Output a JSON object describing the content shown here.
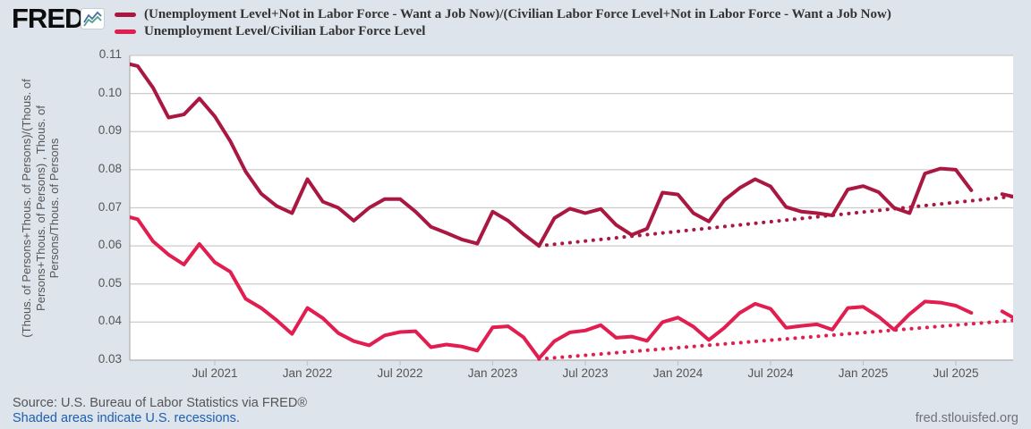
{
  "header": {
    "logo_text": "FRED",
    "logo_reg": "®",
    "legend": [
      {
        "label": "(Unemployment Level+Not in Labor Force - Want a Job Now)/(Civilian Labor Force Level+Not in Labor Force - Want a Job Now)",
        "color": "#aa1740"
      },
      {
        "label": "Unemployment Level/Civilian Labor Force Level",
        "color": "#e21d50"
      }
    ]
  },
  "palette": {
    "page_background": "#dee4ec",
    "plot_background": "#ffffff",
    "gridline": "#cccccc",
    "axis_line": "#b3b3b3",
    "tick_mark": "#bdc7d4",
    "axis_text": "#555555",
    "series_broad": "#aa1740",
    "series_u3": "#e21d50",
    "link_blue": "#1f5fad"
  },
  "chart_data": {
    "type": "line",
    "title": "",
    "xlabel": "",
    "ylabel": "(Thous. of Persons+Thous. of Persons)/(Thous. of Persons+Thous. of Persons) , Thous. of Persons/Thous. of Persons",
    "ylabel_lines": [
      "(Thous. of Persons+Thous. of Persons)/(Thous. of",
      "Persons+Thous. of Persons) , Thous. of",
      "Persons/Thous. of Persons"
    ],
    "frequency": "Monthly",
    "x_start": "Jan 2021",
    "x_end": "Nov 2025",
    "ylim": [
      0.03,
      0.11
    ],
    "grid": "horizontal",
    "legend_position": "top",
    "yticks": [
      {
        "label": "0.11",
        "value": 0.11
      },
      {
        "label": "0.10",
        "value": 0.1
      },
      {
        "label": "0.09",
        "value": 0.09
      },
      {
        "label": "0.08",
        "value": 0.08
      },
      {
        "label": "0.07",
        "value": 0.07
      },
      {
        "label": "0.06",
        "value": 0.06
      },
      {
        "label": "0.05",
        "value": 0.05
      },
      {
        "label": "0.04",
        "value": 0.04
      },
      {
        "label": "0.03",
        "value": 0.03
      }
    ],
    "xticks": [
      {
        "label": "Jul 2021",
        "index": 6
      },
      {
        "label": "Jan 2022",
        "index": 12
      },
      {
        "label": "Jul 2022",
        "index": 18
      },
      {
        "label": "Jan 2023",
        "index": 24
      },
      {
        "label": "Jul 2023",
        "index": 30
      },
      {
        "label": "Jan 2024",
        "index": 36
      },
      {
        "label": "Jul 2024",
        "index": 42
      },
      {
        "label": "Jan 2025",
        "index": 48
      },
      {
        "label": "Jul 2025",
        "index": 54
      }
    ],
    "series": [
      {
        "id": "ratio-broad",
        "name": "(Unemployment Level+Not in Labor Force - Want a Job Now)/(Civilian Labor Force Level+Not in Labor Force - Want a Job Now)",
        "style": "solid",
        "color": "#aa1740",
        "values": [
          0.1082,
          0.1072,
          0.1015,
          0.0937,
          0.0945,
          0.0987,
          0.094,
          0.0875,
          0.0795,
          0.0737,
          0.0705,
          0.0686,
          0.0775,
          0.0716,
          0.07,
          0.0666,
          0.07,
          0.0723,
          0.0723,
          0.069,
          0.065,
          0.0634,
          0.0617,
          0.0606,
          0.069,
          0.0666,
          0.0631,
          0.06,
          0.0673,
          0.0698,
          0.0686,
          0.0697,
          0.0655,
          0.0629,
          0.0645,
          0.074,
          0.0735,
          0.0686,
          0.0664,
          0.072,
          0.0752,
          0.0775,
          0.0756,
          0.0702,
          0.069,
          0.0686,
          0.068,
          0.0748,
          0.0757,
          0.0741,
          0.07,
          0.0686,
          0.079,
          0.0803,
          0.08,
          0.0746,
          null,
          0.0736,
          0.0727
        ]
      },
      {
        "id": "ratio-u3",
        "name": "Unemployment Level/Civilian Labor Force Level",
        "style": "solid",
        "color": "#e21d50",
        "values": [
          0.068,
          0.067,
          0.0612,
          0.0577,
          0.0551,
          0.0605,
          0.0557,
          0.0532,
          0.0461,
          0.0437,
          0.0405,
          0.0369,
          0.0437,
          0.041,
          0.0371,
          0.035,
          0.0339,
          0.0365,
          0.0374,
          0.0376,
          0.0334,
          0.0341,
          0.0336,
          0.0325,
          0.0386,
          0.0389,
          0.036,
          0.0305,
          0.035,
          0.0373,
          0.0378,
          0.0392,
          0.0359,
          0.0362,
          0.0351,
          0.04,
          0.0412,
          0.0388,
          0.0353,
          0.0385,
          0.0424,
          0.0448,
          0.0435,
          0.0385,
          0.039,
          0.0394,
          0.038,
          0.0437,
          0.044,
          0.0414,
          0.038,
          0.0421,
          0.0454,
          0.0451,
          0.0443,
          0.0424,
          null,
          0.0428,
          0.0405
        ]
      },
      {
        "id": "trend-broad",
        "name": "linear trend of broad ratio",
        "style": "dotted",
        "color": "#aa1740",
        "start_index": 27,
        "start_value": 0.06,
        "end_index": 58.2,
        "end_value": 0.0732
      },
      {
        "id": "trend-u3",
        "name": "linear trend of unemployment ratio",
        "style": "dotted",
        "color": "#e21d50",
        "start_index": 27,
        "start_value": 0.0303,
        "end_index": 58.2,
        "end_value": 0.0406
      }
    ]
  },
  "footer": {
    "source": "Source: U.S. Bureau of Labor Statistics via FRED®",
    "recession_note": "Shaded areas indicate U.S. recessions.",
    "site": "fred.stlouisfed.org"
  }
}
